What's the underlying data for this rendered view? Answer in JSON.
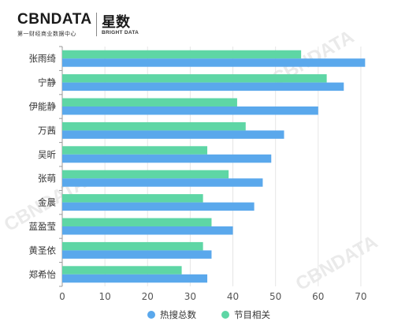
{
  "header": {
    "logo_main": "CBNDATA",
    "logo_sub": "第一财经商业数据中心",
    "logo2_main": "星数",
    "logo2_sub": "BRIGHT DATA"
  },
  "watermarks": [
    "CBNDATA",
    "第一财经商业数据中心"
  ],
  "colors": {
    "hot_search": "#5aa8ec",
    "program": "#5ed6a5",
    "axis": "#999999",
    "grid": "#e6e6e6",
    "text": "#333333"
  },
  "chart_data": {
    "type": "bar",
    "orientation": "horizontal",
    "categories": [
      "张雨绮",
      "宁静",
      "伊能静",
      "万茜",
      "吴昕",
      "张萌",
      "金晨",
      "蓝盈莹",
      "黄圣依",
      "郑希怡"
    ],
    "series": [
      {
        "name": "热搜总数",
        "values": [
          71,
          66,
          60,
          52,
          49,
          47,
          45,
          40,
          35,
          34
        ]
      },
      {
        "name": "节目相关",
        "values": [
          56,
          62,
          41,
          43,
          34,
          39,
          33,
          35,
          33,
          28
        ]
      }
    ],
    "xlim": [
      0,
      75
    ],
    "xticks": [
      0,
      10,
      20,
      30,
      40,
      50,
      60,
      70
    ],
    "grid": true,
    "legend_position": "bottom"
  }
}
